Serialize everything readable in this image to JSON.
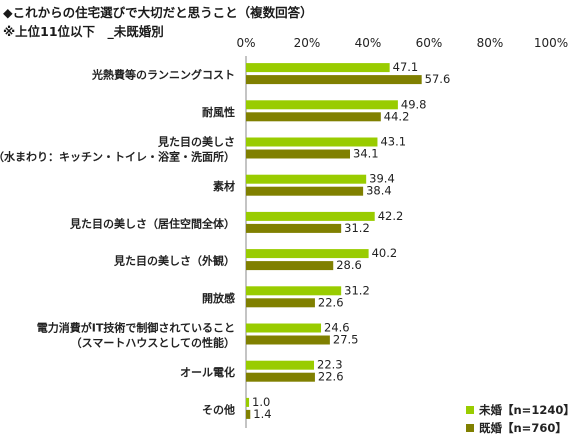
{
  "title": "◆これからの住宅選びで大切だと思うこと（複数回答）",
  "subtitle": "※上位11位以下　_未既婚別",
  "chart_data": {
    "type": "bar",
    "orientation": "horizontal",
    "title": "◆これからの住宅選びで大切だと思うこと（複数回答）",
    "subtitle": "※上位11位以下　_未既婚別",
    "categories": [
      [
        "光熱費等のランニングコスト"
      ],
      [
        "耐風性"
      ],
      [
        "見た目の美しさ",
        "（水まわり：キッチン・トイレ・浴室・洗面所）"
      ],
      [
        "素材"
      ],
      [
        "見た目の美しさ（居住空間全体）"
      ],
      [
        "見た目の美しさ（外観）"
      ],
      [
        "開放感"
      ],
      [
        "電力消費がIT技術で制御されていること",
        "（スマートハウスとしての性能）"
      ],
      [
        "オール電化"
      ],
      [
        "その他"
      ]
    ],
    "series": [
      {
        "name": "未婚【n=1240】",
        "color": "#99cc00",
        "values": [
          47.1,
          49.8,
          43.1,
          39.4,
          42.2,
          40.2,
          31.2,
          24.6,
          22.3,
          1.0
        ]
      },
      {
        "name": "既婚【n=760】",
        "color": "#808000",
        "values": [
          57.6,
          44.2,
          34.1,
          38.4,
          31.2,
          28.6,
          22.6,
          27.5,
          22.6,
          1.4
        ]
      }
    ],
    "xlim": [
      0,
      100
    ],
    "xticks": [
      0,
      20,
      40,
      60,
      80,
      100
    ],
    "tick_suffix": "%",
    "grid": false,
    "legend_position": "bottom-right"
  }
}
